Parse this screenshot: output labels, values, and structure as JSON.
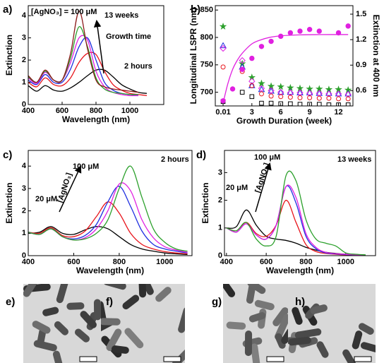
{
  "chart_data": [
    {
      "type": "line",
      "panel_label": "a)",
      "x_label": "Wavelength (nm)",
      "y_label": "Extinction",
      "annotations": [
        "[AgNO₃] = 100 μM",
        "13 weeks",
        "Growth time",
        "2 hours"
      ],
      "x": [
        400,
        450,
        500,
        550,
        600,
        650,
        700,
        750,
        800,
        850,
        900,
        950,
        1000,
        1050,
        1100
      ],
      "xlim": [
        400,
        1200
      ],
      "xticks": [
        400,
        600,
        800,
        1000
      ],
      "ylim": [
        0,
        4.45
      ],
      "yticks": [
        0,
        1,
        2,
        3,
        4
      ],
      "series": [
        {
          "color": "#000000",
          "values": [
            0.85,
            0.6,
            0.85,
            0.65,
            0.6,
            0.75,
            1.0,
            1.3,
            1.55,
            1.55,
            1.25,
            0.9,
            0.7,
            0.55,
            0.5
          ]
        },
        {
          "color": "#e8141b",
          "values": [
            1.0,
            0.8,
            1.2,
            0.9,
            0.85,
            1.2,
            1.9,
            2.3,
            2.25,
            1.5,
            0.9,
            0.65,
            0.5,
            0.45,
            0.4
          ]
        },
        {
          "color": "#1f2fe0",
          "values": [
            1.1,
            0.9,
            1.35,
            1.0,
            1.0,
            1.6,
            2.6,
            3.0,
            2.0,
            1.0,
            0.65,
            0.5,
            0.45,
            0.4,
            null
          ]
        },
        {
          "color": "#e020e0",
          "values": [
            1.2,
            0.95,
            1.45,
            1.1,
            1.1,
            1.9,
            3.0,
            2.9,
            1.5,
            0.8,
            0.55,
            0.45,
            0.4,
            0.4,
            null
          ]
        },
        {
          "color": "#2ca02c",
          "values": [
            1.25,
            1.0,
            1.5,
            1.1,
            1.1,
            2.1,
            3.5,
            2.6,
            1.2,
            0.7,
            0.55,
            0.5,
            0.45,
            0.45,
            null
          ]
        },
        {
          "color": "#8b1a1a",
          "values": [
            1.3,
            1.0,
            1.55,
            1.1,
            1.1,
            2.3,
            4.2,
            2.5,
            1.1,
            0.8,
            0.7,
            0.65,
            0.6,
            0.55,
            null
          ]
        }
      ]
    },
    {
      "type": "scatter",
      "panel_label": "b)",
      "x_label": "Growth Duration (week)",
      "y_label": "Longitudinal LSPR (nm)",
      "y2_label": "Extinction at 400 nm",
      "xlim": [
        -0.8,
        13.5
      ],
      "xticks": [
        0.01,
        3,
        6,
        9,
        12
      ],
      "ylim": [
        675,
        858
      ],
      "yticks": [
        700,
        750,
        800,
        850
      ],
      "y2lim": [
        0.42,
        1.6
      ],
      "y2ticks": [
        0.6,
        0.9,
        1.2,
        1.5
      ],
      "series": [
        {
          "color": "#2ca02c",
          "marker": "star",
          "x": [
            0.01,
            2,
            3,
            4,
            5,
            6,
            7,
            8,
            9,
            10,
            11,
            12,
            13
          ],
          "values": [
            820,
            752,
            727,
            716,
            711,
            710,
            708,
            707,
            706,
            706,
            705,
            705,
            704
          ]
        },
        {
          "color": "#1f2fe0",
          "marker": "triangle",
          "x": [
            0.01,
            2,
            3,
            4,
            5,
            6,
            7,
            8,
            9,
            10,
            11,
            12,
            13
          ],
          "values": [
            785,
            746,
            712,
            705,
            702,
            700,
            700,
            699,
            699,
            698,
            698,
            697,
            697
          ]
        },
        {
          "color": "#e020e0",
          "marker": "diamond",
          "x": [
            0.01,
            2,
            3,
            4,
            5,
            6,
            7,
            8,
            9,
            10,
            11,
            12,
            13
          ],
          "values": [
            780,
            758,
            720,
            707,
            703,
            700,
            699,
            699,
            698,
            698,
            697,
            697,
            696
          ]
        },
        {
          "color": "#e8141b",
          "marker": "circle",
          "x": [
            0.01,
            2,
            3,
            4,
            5,
            6,
            7,
            8,
            9,
            10,
            11,
            12,
            13
          ],
          "values": [
            746,
            738,
            712,
            697,
            693,
            692,
            691,
            690,
            690,
            689,
            689,
            688,
            688
          ]
        },
        {
          "color": "#000000",
          "marker": "square",
          "x": [
            0.01,
            2,
            3,
            4,
            5,
            6,
            7,
            8,
            9,
            10,
            11,
            12,
            13
          ],
          "values": [
            683,
            700,
            692,
            680,
            680,
            679,
            679,
            678,
            678,
            678,
            677,
            677,
            677
          ]
        },
        {
          "color": "#e020e0",
          "marker": "dot",
          "axis": "y2",
          "x": [
            0.01,
            1,
            2,
            3,
            4,
            5,
            6,
            7,
            8,
            9,
            10,
            12,
            13
          ],
          "values": [
            0.48,
            0.62,
            0.85,
            0.98,
            1.12,
            1.18,
            1.24,
            1.28,
            1.3,
            1.32,
            1.3,
            1.28,
            1.36
          ]
        },
        {
          "color": "#e020e0",
          "marker": "line",
          "axis": "y2",
          "x": [
            0.01,
            0.5,
            1,
            1.5,
            2,
            3,
            4,
            5,
            6,
            8,
            10,
            13
          ],
          "values": [
            0.455,
            0.68,
            0.85,
            0.96,
            1.04,
            1.15,
            1.2,
            1.23,
            1.245,
            1.256,
            1.259,
            1.26
          ]
        }
      ]
    },
    {
      "type": "line",
      "panel_label": "c)",
      "x_label": "Wavelength (nm)",
      "y_label": "Extinction",
      "annotations": [
        "2 hours",
        "100 μM",
        "20 μM",
        "[AgNO₃]"
      ],
      "x": [
        400,
        450,
        500,
        550,
        600,
        650,
        700,
        750,
        800,
        850,
        900,
        950,
        1000,
        1050,
        1100
      ],
      "xlim": [
        400,
        1120
      ],
      "xticks": [
        400,
        600,
        800,
        1000
      ],
      "ylim": [
        0,
        4.7
      ],
      "yticks": [
        0,
        1,
        2,
        3,
        4
      ],
      "series": [
        {
          "color": "#000000",
          "values": [
            1.0,
            1.05,
            1.3,
            1.0,
            0.95,
            1.15,
            1.3,
            1.2,
            0.85,
            0.5,
            0.3,
            0.2,
            0.12,
            0.08,
            0.05
          ]
        },
        {
          "color": "#e8141b",
          "values": [
            1.05,
            1.0,
            1.25,
            0.9,
            0.85,
            1.1,
            1.75,
            2.4,
            1.9,
            1.0,
            0.5,
            0.3,
            0.18,
            0.12,
            0.08
          ]
        },
        {
          "color": "#1f2fe0",
          "values": [
            1.05,
            0.95,
            1.2,
            0.85,
            0.75,
            0.9,
            1.4,
            2.4,
            3.1,
            2.2,
            1.1,
            0.5,
            0.3,
            0.2,
            0.12
          ]
        },
        {
          "color": "#e020e0",
          "values": [
            1.05,
            0.95,
            1.2,
            0.85,
            0.7,
            0.8,
            1.2,
            2.0,
            3.2,
            2.9,
            1.6,
            0.8,
            0.4,
            0.25,
            0.15
          ]
        },
        {
          "color": "#2ca02c",
          "values": [
            1.05,
            0.95,
            1.2,
            0.85,
            0.7,
            0.75,
            1.0,
            1.6,
            3.0,
            4.0,
            2.6,
            1.2,
            0.6,
            0.3,
            0.2
          ]
        }
      ]
    },
    {
      "type": "line",
      "panel_label": "d)",
      "x_label": "Wavelength (nm)",
      "y_label": "Extinction",
      "annotations": [
        "13 weeks",
        "100 μM",
        "20 μM",
        "[AgNO₃]"
      ],
      "x": [
        400,
        450,
        500,
        550,
        600,
        650,
        700,
        750,
        800,
        850,
        900,
        950,
        1000,
        1050,
        1100
      ],
      "xlim": [
        390,
        1150
      ],
      "xticks": [
        400,
        600,
        800,
        1000
      ],
      "ylim": [
        0,
        3.8
      ],
      "yticks": [
        0,
        1,
        2,
        3
      ],
      "series": [
        {
          "color": "#000000",
          "values": [
            1.0,
            1.05,
            1.65,
            1.1,
            0.7,
            0.6,
            0.55,
            0.45,
            0.3,
            0.2,
            0.12,
            0.08,
            0.05,
            0.03,
            0.02
          ]
        },
        {
          "color": "#e8141b",
          "values": [
            1.0,
            0.9,
            1.2,
            0.8,
            0.7,
            1.1,
            2.0,
            1.2,
            0.4,
            0.15,
            0.08,
            0.05,
            0.03,
            0.02,
            0.02
          ]
        },
        {
          "color": "#1f2fe0",
          "values": [
            1.0,
            0.85,
            1.15,
            0.75,
            0.6,
            1.1,
            2.5,
            1.9,
            0.7,
            0.25,
            0.1,
            0.06,
            0.04,
            0.03,
            0.02
          ]
        },
        {
          "color": "#e020e0",
          "values": [
            1.0,
            0.85,
            1.15,
            0.75,
            0.6,
            1.1,
            2.5,
            2.1,
            0.8,
            0.3,
            0.12,
            0.07,
            0.05,
            0.03,
            0.02
          ]
        },
        {
          "color": "#2ca02c",
          "values": [
            1.0,
            0.9,
            1.2,
            0.6,
            0.35,
            0.7,
            2.9,
            2.7,
            1.3,
            0.6,
            0.45,
            0.35,
            0.1,
            0.05,
            0.03
          ]
        }
      ]
    }
  ],
  "images": [
    {
      "label": "e)"
    },
    {
      "label": "f)"
    },
    {
      "label": "g)"
    },
    {
      "label": "h)"
    }
  ]
}
